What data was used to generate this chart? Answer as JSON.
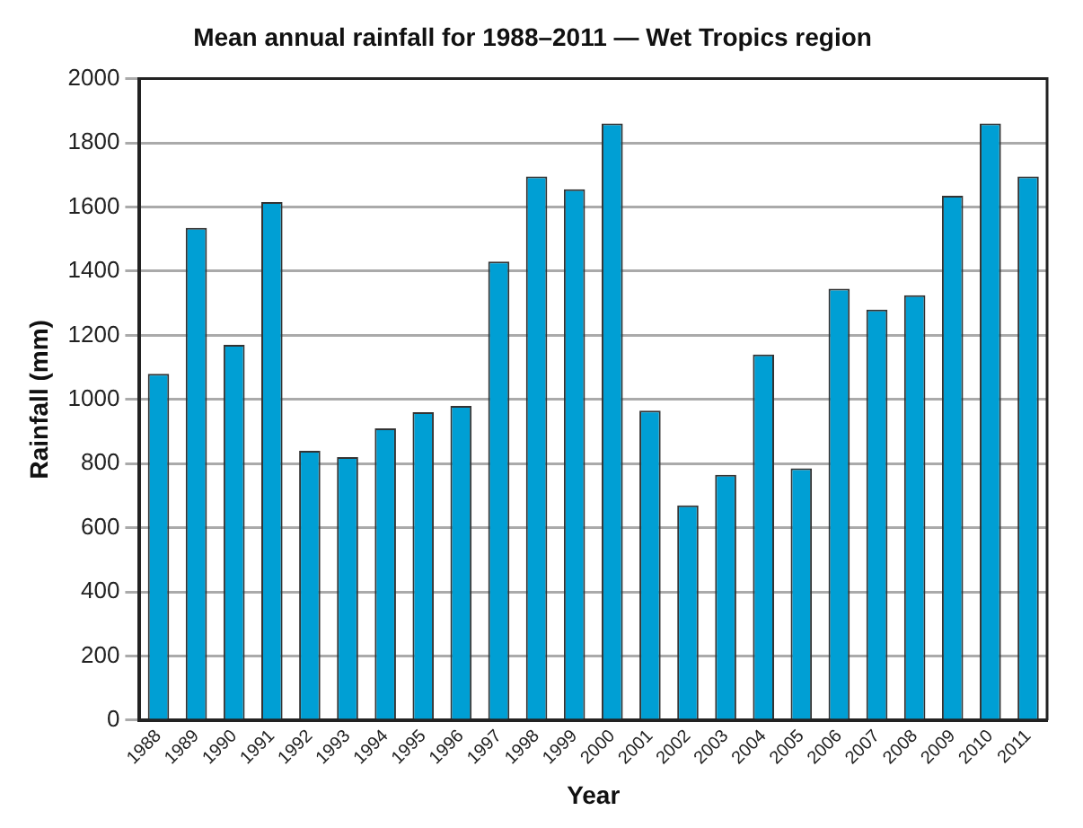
{
  "chart_data": {
    "type": "bar",
    "title": "Mean annual rainfall for 1988–2011 — Wet Tropics region",
    "xlabel": "Year",
    "ylabel": "Rainfall (mm)",
    "categories": [
      "1988",
      "1989",
      "1990",
      "1991",
      "1992",
      "1993",
      "1994",
      "1995",
      "1996",
      "1997",
      "1998",
      "1999",
      "2000",
      "2001",
      "2002",
      "2003",
      "2004",
      "2005",
      "2006",
      "2007",
      "2008",
      "2009",
      "2010",
      "2011"
    ],
    "values": [
      1080,
      1535,
      1170,
      1615,
      840,
      820,
      910,
      960,
      980,
      1430,
      1695,
      1655,
      1860,
      965,
      670,
      765,
      1140,
      785,
      1345,
      1280,
      1325,
      1635,
      1860,
      1695
    ],
    "color": "#009fd4",
    "ylim": [
      0,
      2000
    ],
    "yticks": [
      0,
      200,
      400,
      600,
      800,
      1000,
      1200,
      1400,
      1600,
      1800,
      2000
    ],
    "grid": "y",
    "legend": false
  }
}
